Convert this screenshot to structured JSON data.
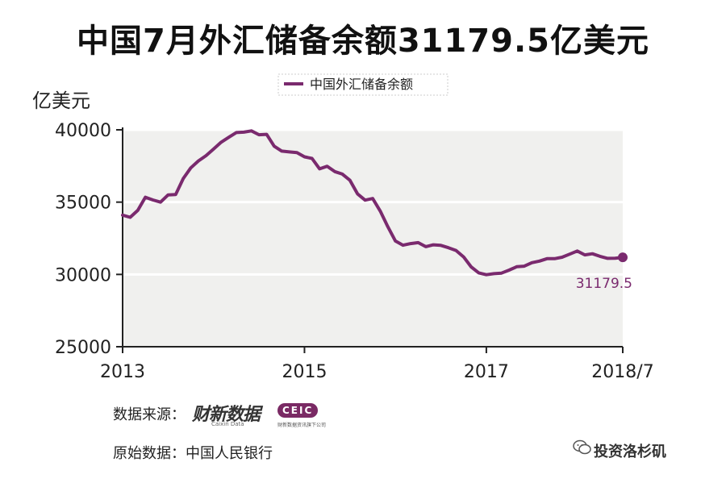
{
  "title": "中国7月外汇储备余额31179.5亿美元",
  "chart_data": {
    "type": "line",
    "unit_label": "亿美元",
    "series": [
      {
        "name": "中国外汇储备余额",
        "color": "#7a2a6e",
        "x": [
          "2013-01",
          "2013-02",
          "2013-03",
          "2013-04",
          "2013-05",
          "2013-06",
          "2013-07",
          "2013-08",
          "2013-09",
          "2013-10",
          "2013-11",
          "2013-12",
          "2014-01",
          "2014-02",
          "2014-03",
          "2014-04",
          "2014-05",
          "2014-06",
          "2014-07",
          "2014-08",
          "2014-09",
          "2014-10",
          "2014-11",
          "2014-12",
          "2015-01",
          "2015-02",
          "2015-03",
          "2015-04",
          "2015-05",
          "2015-06",
          "2015-07",
          "2015-08",
          "2015-09",
          "2015-10",
          "2015-11",
          "2015-12",
          "2016-01",
          "2016-02",
          "2016-03",
          "2016-04",
          "2016-05",
          "2016-06",
          "2016-07",
          "2016-08",
          "2016-09",
          "2016-10",
          "2016-11",
          "2016-12",
          "2017-01",
          "2017-02",
          "2017-03",
          "2017-04",
          "2017-05",
          "2017-06",
          "2017-07",
          "2017-08",
          "2017-09",
          "2017-10",
          "2017-11",
          "2017-12",
          "2018-01",
          "2018-02",
          "2018-03",
          "2018-04",
          "2018-05",
          "2018-06",
          "2018-07"
        ],
        "values": [
          34100,
          33950,
          34430,
          35340,
          35150,
          35000,
          35500,
          35530,
          36630,
          37370,
          37850,
          38210,
          38670,
          39140,
          39480,
          39810,
          39840,
          39930,
          39660,
          39690,
          38870,
          38530,
          38470,
          38430,
          38130,
          38020,
          37300,
          37480,
          37110,
          36940,
          36510,
          35570,
          35140,
          35250,
          34380,
          33300,
          32310,
          32020,
          32130,
          32200,
          31920,
          32050,
          32010,
          31850,
          31660,
          31210,
          30520,
          30110,
          29980,
          30050,
          30090,
          30300,
          30530,
          30570,
          30810,
          30920,
          31090,
          31090,
          31190,
          31400,
          31620,
          31350,
          31430,
          31250,
          31110,
          31120,
          31179.5
        ]
      }
    ],
    "x_ticks": [
      "2013",
      "2015",
      "2017",
      "2018/7"
    ],
    "y_ticks": [
      25000,
      30000,
      35000,
      40000
    ],
    "ylim": [
      25000,
      40000
    ],
    "end_label": "31179.5",
    "grid": true,
    "legend_position": "top-center"
  },
  "footer": {
    "source_label": "数据来源：",
    "brand_name": "财新数据",
    "brand_sub": "Caixin Data",
    "ceic_name": "CEIC",
    "ceic_sub": "财新数据资讯旗下公司",
    "origin_label": "原始数据：中国人民银行"
  },
  "watermark": {
    "text": "投资洛杉矶",
    "icon": "wechat-icon"
  },
  "colors": {
    "line": "#7a2a6e",
    "plot_bg": "#f0f0ee",
    "grid": "#ffffff",
    "ceic_bg": "#7a2a64"
  }
}
